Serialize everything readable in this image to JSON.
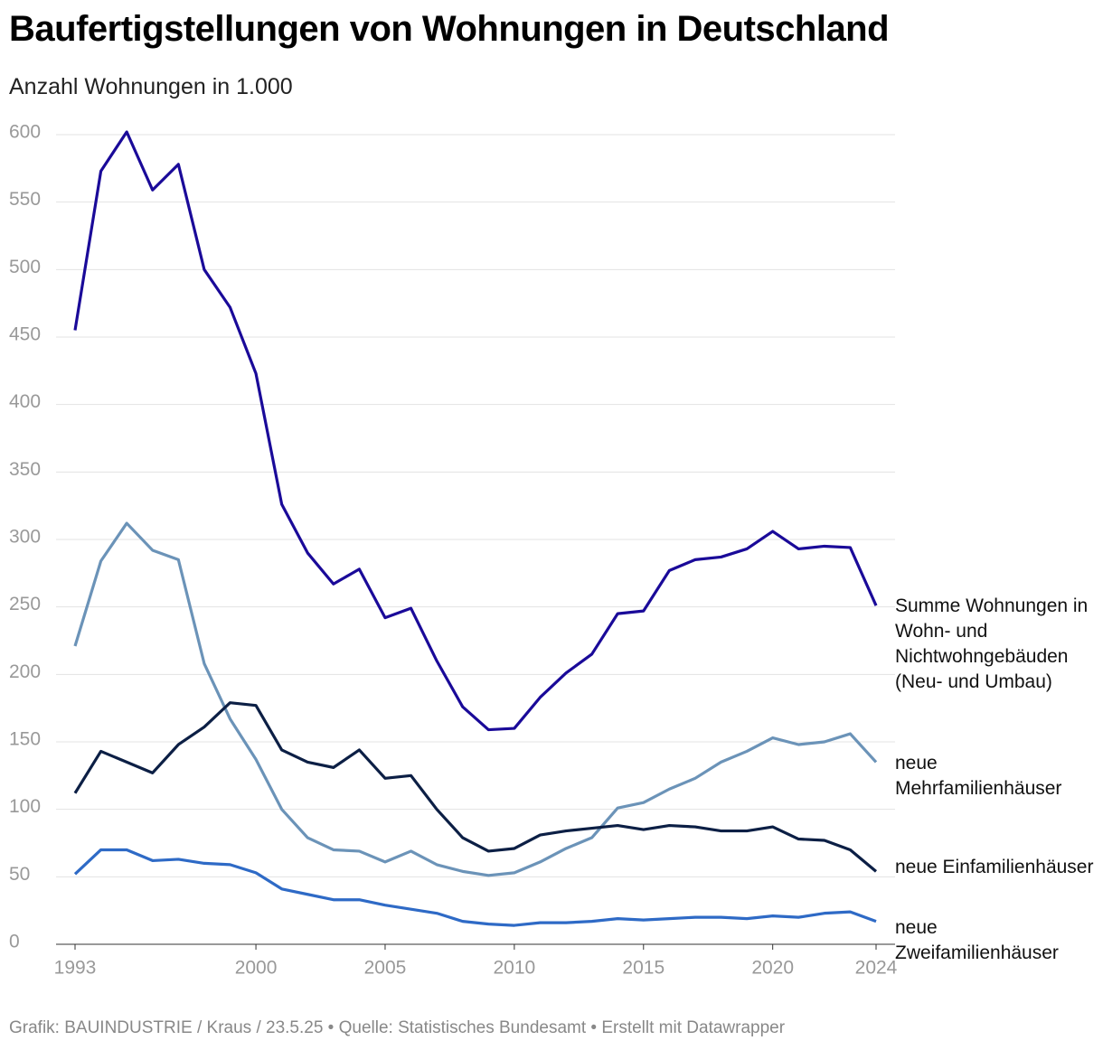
{
  "chart_data": {
    "type": "line",
    "title": "Baufertigstellungen von Wohnungen in Deutschland",
    "subtitle": "Anzahl Wohnungen in 1.000",
    "source": "Grafik: BAUINDUSTRIE / Kraus / 23.5.25 • Quelle: Statistisches Bundesamt • Erstellt mit Datawrapper",
    "x": [
      1993,
      1994,
      1995,
      1996,
      1997,
      1998,
      1999,
      2000,
      2001,
      2002,
      2003,
      2004,
      2005,
      2006,
      2007,
      2008,
      2009,
      2010,
      2011,
      2012,
      2013,
      2014,
      2015,
      2016,
      2017,
      2018,
      2019,
      2020,
      2021,
      2022,
      2023,
      2024
    ],
    "xlim": [
      1993,
      2024
    ],
    "xticks": [
      1993,
      2000,
      2005,
      2010,
      2015,
      2020,
      2024
    ],
    "ylim": [
      0,
      600
    ],
    "yticks": [
      0,
      50,
      100,
      150,
      200,
      250,
      300,
      350,
      400,
      450,
      500,
      550,
      600
    ],
    "grid": true,
    "series": [
      {
        "name": "Summe Wohnungen in Wohn- und Nichtwohngebäuden (Neu- und Umbau)",
        "color": "#1a0a99",
        "values": [
          455,
          573,
          602,
          559,
          578,
          500,
          472,
          423,
          326,
          290,
          267,
          278,
          242,
          249,
          210,
          176,
          159,
          160,
          183,
          201,
          215,
          245,
          247,
          277,
          285,
          287,
          293,
          306,
          293,
          295,
          294,
          251
        ]
      },
      {
        "name": "neue Mehrfamilienhäuser",
        "color": "#6b93b8",
        "values": [
          221,
          284,
          312,
          292,
          285,
          208,
          167,
          137,
          100,
          79,
          70,
          69,
          61,
          69,
          59,
          54,
          51,
          53,
          61,
          71,
          79,
          101,
          105,
          115,
          123,
          135,
          143,
          153,
          148,
          150,
          156,
          135
        ]
      },
      {
        "name": "neue Einfamilienhäuser",
        "color": "#0c1f45",
        "values": [
          112,
          143,
          135,
          127,
          148,
          161,
          179,
          177,
          144,
          135,
          131,
          144,
          123,
          125,
          100,
          79,
          69,
          71,
          81,
          84,
          86,
          88,
          85,
          88,
          87,
          84,
          84,
          87,
          78,
          77,
          70,
          54
        ]
      },
      {
        "name": "neue Zweifamilienhäuser",
        "color": "#2e6ac6",
        "values": [
          52,
          70,
          70,
          62,
          63,
          60,
          59,
          53,
          41,
          37,
          33,
          33,
          29,
          26,
          23,
          17,
          15,
          14,
          16,
          16,
          17,
          19,
          18,
          19,
          20,
          20,
          19,
          21,
          20,
          23,
          24,
          17
        ]
      }
    ]
  }
}
